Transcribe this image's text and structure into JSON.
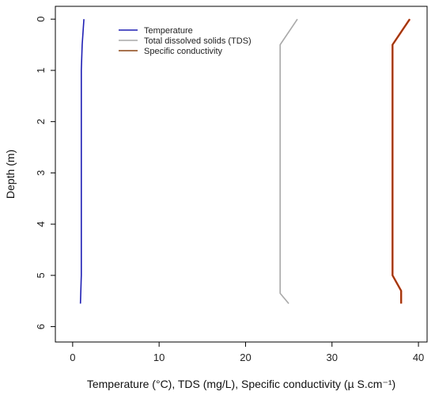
{
  "chart_data": {
    "type": "line",
    "xlabel": "Temperature (°C), TDS (mg/L), Specific conductivity (µ S.cm⁻¹)",
    "ylabel": "Depth (m)",
    "xlim": [
      -2,
      41
    ],
    "ylim": [
      6.3,
      -0.25
    ],
    "y_inverted": true,
    "x_ticks": [
      0,
      10,
      20,
      30,
      40
    ],
    "y_ticks": [
      0,
      1,
      2,
      3,
      4,
      5,
      6
    ],
    "legend_position": "top-center",
    "grid": false,
    "series": [
      {
        "name": "Temperature",
        "color": "#1f1fb4",
        "points": [
          [
            1.3,
            0.0
          ],
          [
            1.1,
            0.5
          ],
          [
            1.0,
            1.0
          ],
          [
            1.0,
            2.0
          ],
          [
            1.0,
            3.0
          ],
          [
            1.0,
            4.0
          ],
          [
            1.0,
            5.0
          ],
          [
            0.9,
            5.55
          ]
        ]
      },
      {
        "name": "Total dissolved solids (TDS)",
        "color": "#a9a9a9",
        "points": [
          [
            26.0,
            0.0
          ],
          [
            24.0,
            0.5
          ],
          [
            24.0,
            1.0
          ],
          [
            24.0,
            2.0
          ],
          [
            24.0,
            3.0
          ],
          [
            24.0,
            4.0
          ],
          [
            24.0,
            5.0
          ],
          [
            24.0,
            5.35
          ],
          [
            25.0,
            5.55
          ]
        ]
      },
      {
        "name": "Specific conductivity",
        "color": "#8b4513",
        "accent_color": "#cc2200",
        "points": [
          [
            39.0,
            0.0
          ],
          [
            37.0,
            0.5
          ],
          [
            37.0,
            1.0
          ],
          [
            37.0,
            2.0
          ],
          [
            37.0,
            3.0
          ],
          [
            37.0,
            4.0
          ],
          [
            37.0,
            5.0
          ],
          [
            38.0,
            5.3
          ],
          [
            38.0,
            5.55
          ]
        ]
      }
    ]
  }
}
